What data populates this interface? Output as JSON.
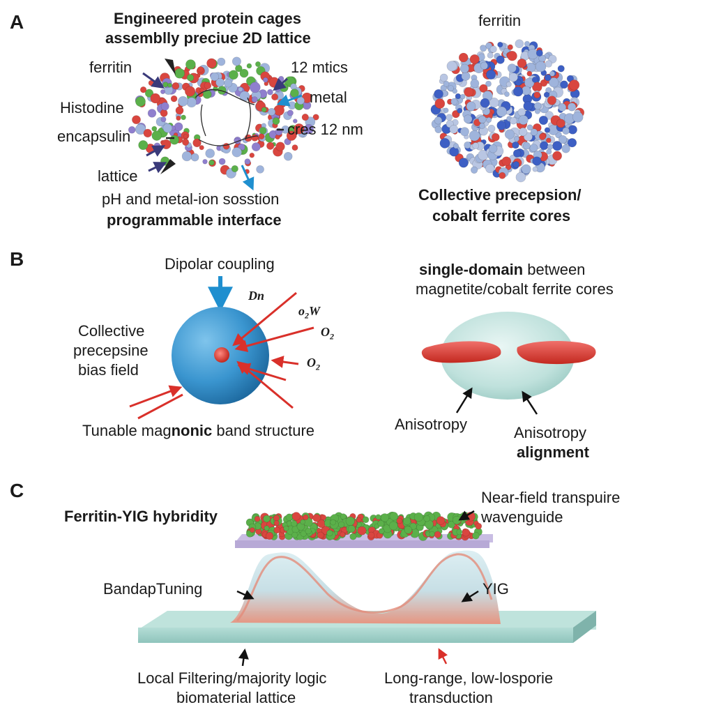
{
  "panels": {
    "a": "A",
    "b": "B",
    "c": "C"
  },
  "panel_a": {
    "title_line1": "Engineered protein cages",
    "title_line2": "assemblly preciue 2D lattice",
    "label_ferritin": "ferritin",
    "label_histodine": "Histodine",
    "label_encapsulin": "encapsulin",
    "label_lattice": "lattice",
    "label_12_mtics": "12 mtics",
    "label_metal": "metal",
    "label_cres": "cres 12 nm",
    "caption_line1": "pH and metal-ion sosstion",
    "caption_line2": "programmable interface",
    "right_title": "ferritin",
    "right_caption_line1": "Collective precepsion/",
    "right_caption_line2": "cobalt ferrite cores"
  },
  "panel_b": {
    "dipolar": "Dipolar coupling",
    "dn": "Dn",
    "o2w_o": "o",
    "o2w_sub": "2",
    "o2w_w": "W",
    "o2a": "O",
    "o2a_sub": "2",
    "o2b": "O",
    "o2b_sub": "2",
    "left_line1": "Collective",
    "left_line2": "precepsine",
    "left_line3": "bias field",
    "bottom": "Tunable mag",
    "bottom_bold": "nonic",
    "bottom_rest": " band structure",
    "right_title_bold": "single-domain",
    "right_title_rest": " between",
    "right_title_line2": "magnetite/cobalt ferrite cores",
    "anisotropy_left": "Anisotropy",
    "anisotropy_right": "Anisotropy",
    "alignment": "alignment"
  },
  "panel_c": {
    "title": "Ferritin-YIG hybridity",
    "near_field_line1": "Near-field transpuire",
    "near_field_line2": "wavenguide",
    "bandgap": "BandapTuning",
    "yig": "YIG",
    "local_line1": "Local Filtering/majority logic",
    "local_line2": "biomaterial lattice",
    "long_line1": "Long-range, low-losporie",
    "long_line2": "transduction"
  },
  "colors": {
    "sphere_red": "#d9463f",
    "sphere_blue": "#3d5fc4",
    "sphere_lightblue": "#9fb4dc",
    "sphere_purple": "#8f7fce",
    "sphere_green": "#5bb04a",
    "dipole_sphere": "#3a95cf",
    "arrow_red": "#d9302a",
    "arrow_blue": "#1f8fcf",
    "arrow_navy": "#3a3a7a",
    "substrate": "#a6d3cb",
    "platform": "#b7a9d6",
    "wave": "#c8dde3"
  }
}
